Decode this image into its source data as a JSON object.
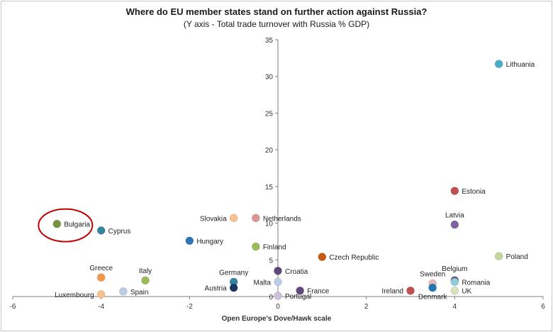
{
  "chart_data": {
    "type": "scatter",
    "title": "Where do EU member states stand on further action against Russia?",
    "subtitle": "(Y axis - Total trade turnover  with  Russia % GDP)",
    "xlabel": "Open Europe's Dove/Hawk scale",
    "ylabel": "",
    "xlim": [
      -6,
      6
    ],
    "ylim": [
      0,
      35
    ],
    "xticks": [
      -6,
      -4,
      -2,
      0,
      2,
      4,
      6
    ],
    "yticks": [
      5,
      10,
      15,
      20,
      25,
      30,
      35
    ],
    "xtick_labels": [
      "-6",
      "-4",
      "-2",
      "0",
      "2",
      "4",
      "6"
    ],
    "ytick_labels": [
      "5",
      "10",
      "15",
      "20",
      "25",
      "30",
      "35"
    ],
    "grid": false,
    "legend": "none",
    "points": [
      {
        "label": "Lithuania",
        "x": 5,
        "y": 31.7,
        "color": "#4bacc6",
        "label_side": "right"
      },
      {
        "label": "Estonia",
        "x": 4,
        "y": 14.4,
        "color": "#c0504d",
        "label_side": "right"
      },
      {
        "label": "Latvia",
        "x": 4,
        "y": 9.8,
        "color": "#8064a2",
        "label_side": "above"
      },
      {
        "label": "Poland",
        "x": 5,
        "y": 5.5,
        "color": "#c3d69b",
        "label_side": "right"
      },
      {
        "label": "Belgium",
        "x": 4,
        "y": 2.2,
        "color": "#604a7b",
        "label_side": "above-right"
      },
      {
        "label": "Romania",
        "x": 4,
        "y": 2.0,
        "color": "#93cddd",
        "label_side": "right"
      },
      {
        "label": "UK",
        "x": 4,
        "y": 0.8,
        "color": "#d7e4bd",
        "label_side": "right"
      },
      {
        "label": "Sweden",
        "x": 3.5,
        "y": 1.8,
        "color": "#e6b9b8",
        "label_side": "above"
      },
      {
        "label": "Denmark",
        "x": 3.5,
        "y": 1.2,
        "color": "#1f77b4",
        "label_side": "below"
      },
      {
        "label": "Ireland",
        "x": 3,
        "y": 0.8,
        "color": "#c0504d",
        "label_side": "left"
      },
      {
        "label": "Czech Republic",
        "x": 1,
        "y": 5.4,
        "color": "#c55a11",
        "label_side": "right"
      },
      {
        "label": "Finland",
        "x": -0.5,
        "y": 6.8,
        "color": "#9bbb59",
        "label_side": "right"
      },
      {
        "label": "Netherlands",
        "x": -0.5,
        "y": 10.7,
        "color": "#d99694",
        "label_side": "right"
      },
      {
        "label": "Slovakia",
        "x": -1,
        "y": 10.7,
        "color": "#fac090",
        "label_side": "left"
      },
      {
        "label": "Hungary",
        "x": -2,
        "y": 7.6,
        "color": "#2e75b6",
        "label_side": "right"
      },
      {
        "label": "Croatia",
        "x": 0,
        "y": 3.5,
        "color": "#5f497a",
        "label_side": "right"
      },
      {
        "label": "Germany",
        "x": -1,
        "y": 2.0,
        "color": "#31859c",
        "label_side": "above"
      },
      {
        "label": "Austria",
        "x": -1,
        "y": 1.2,
        "color": "#17375e",
        "label_side": "left"
      },
      {
        "label": "Malta",
        "x": 0,
        "y": 2.0,
        "color": "#b9cde5",
        "label_side": "left"
      },
      {
        "label": "France",
        "x": 0.5,
        "y": 0.8,
        "color": "#604a7b",
        "label_side": "right"
      },
      {
        "label": "Portugal",
        "x": 0,
        "y": 0.1,
        "color": "#ccc1da",
        "label_side": "right"
      },
      {
        "label": "Bulgaria",
        "x": -5,
        "y": 9.9,
        "color": "#77933c",
        "label_side": "right"
      },
      {
        "label": "Cyprus",
        "x": -4,
        "y": 9.0,
        "color": "#31859c",
        "label_side": "right"
      },
      {
        "label": "Greece",
        "x": -4,
        "y": 2.6,
        "color": "#f79646",
        "label_side": "above"
      },
      {
        "label": "Luxembourg",
        "x": -4,
        "y": 0.3,
        "color": "#fac090",
        "label_side": "left"
      },
      {
        "label": "Italy",
        "x": -3,
        "y": 2.2,
        "color": "#9bbb59",
        "label_side": "above"
      },
      {
        "label": "Spain",
        "x": -3.5,
        "y": 0.7,
        "color": "#b9cde5",
        "label_side": "right"
      }
    ],
    "highlight": {
      "label": "Bulgaria",
      "shape": "ellipse",
      "color": "#c00000"
    },
    "axis_color": "#7f7f7f"
  }
}
